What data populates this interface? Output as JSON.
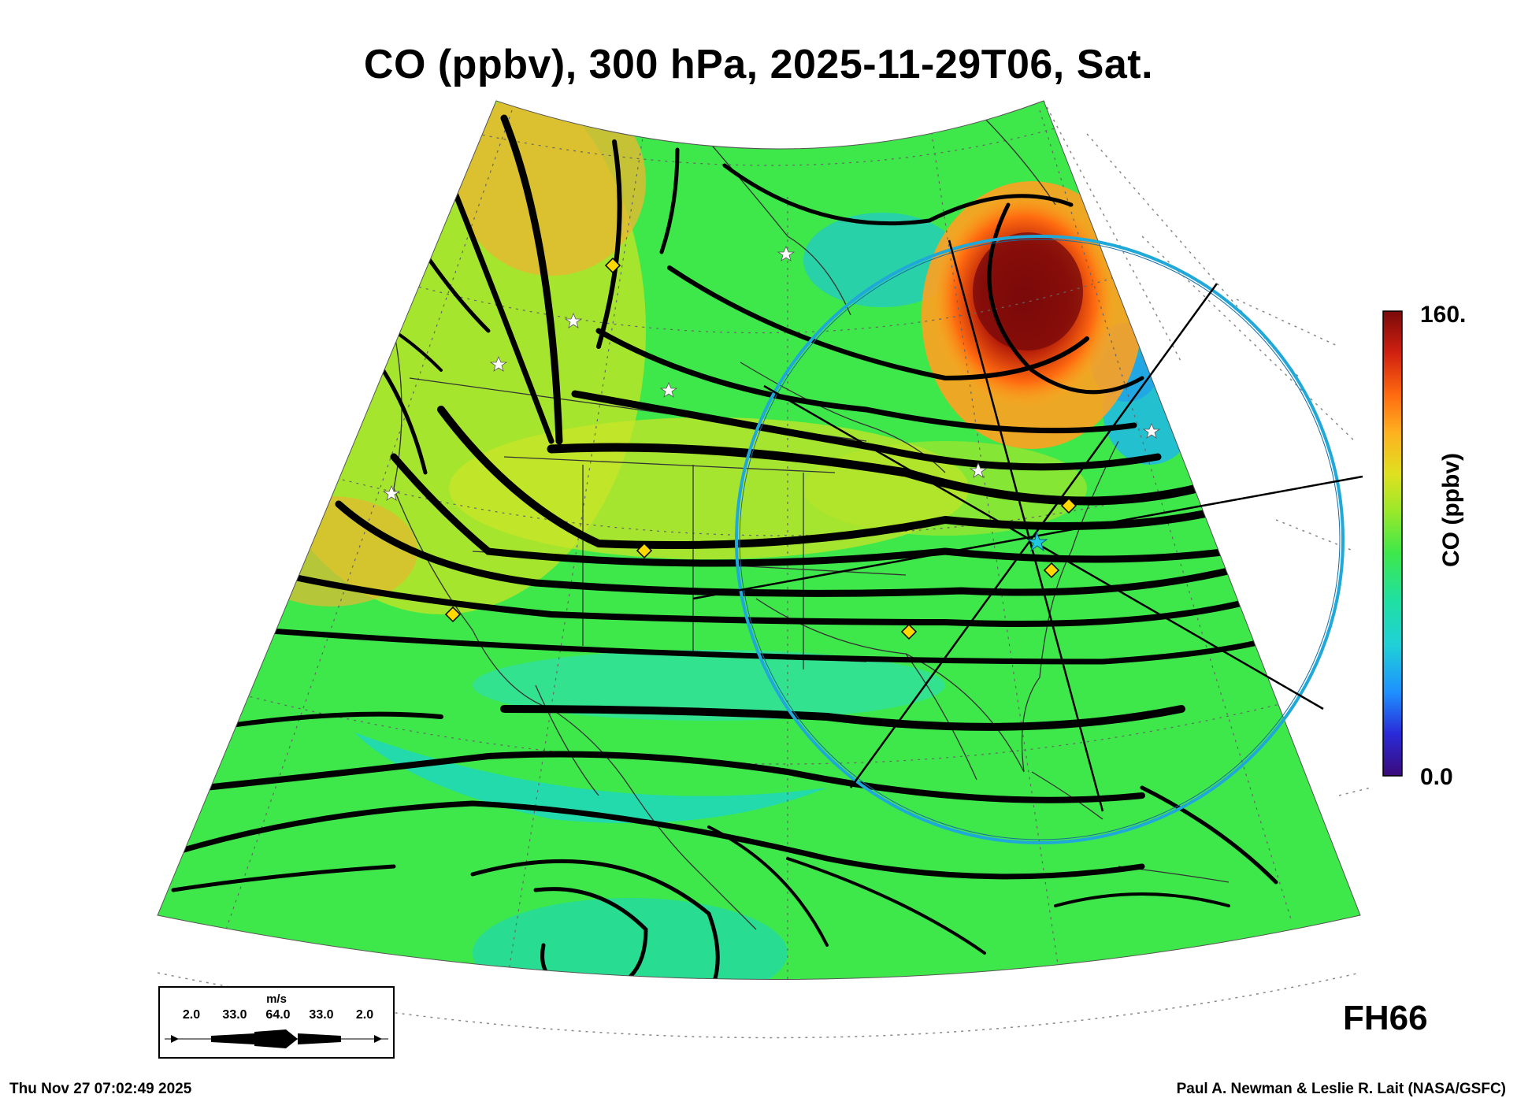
{
  "title": "CO (ppbv), 300 hPa, 2025-11-29T06, Sat.",
  "colorbar": {
    "max_label": "160.",
    "min_label": "0.0",
    "unit_label": "CO (ppbv)",
    "stops": [
      "#3a0a7a",
      "#2a2ad8",
      "#1e90ff",
      "#1fd0d8",
      "#20e0a0",
      "#3ee84a",
      "#9be82a",
      "#e0e020",
      "#ffb020",
      "#ff6a10",
      "#d02010",
      "#7a0a0a"
    ]
  },
  "map_colors": {
    "background": "#3ee84a",
    "high_co": "#c01808",
    "peak_co": "#7a0a0a",
    "moderate_co": "#ffa020",
    "elevated_co": "#d8e020",
    "low_co": "#20d8b8",
    "streamline": "#000000",
    "circle": "#20a8d8",
    "diamond_marker": "#ffd800",
    "star_marker": "#ffffff",
    "center_marker": "#20c8e0"
  },
  "wind_legend": {
    "unit": "m/s",
    "values": [
      "2.0",
      "33.0",
      "64.0",
      "33.0",
      "2.0"
    ]
  },
  "forecast_hour": "FH66",
  "timestamp": "Thu Nov 27 07:02:49 2025",
  "credits": "Paul A. Newman & Leslie R. Lait (NASA/GSFC)",
  "icons": {
    "diamond": "yellow-diamond-site-marker",
    "star": "white-star-site-marker",
    "center": "cyan-center-star"
  }
}
